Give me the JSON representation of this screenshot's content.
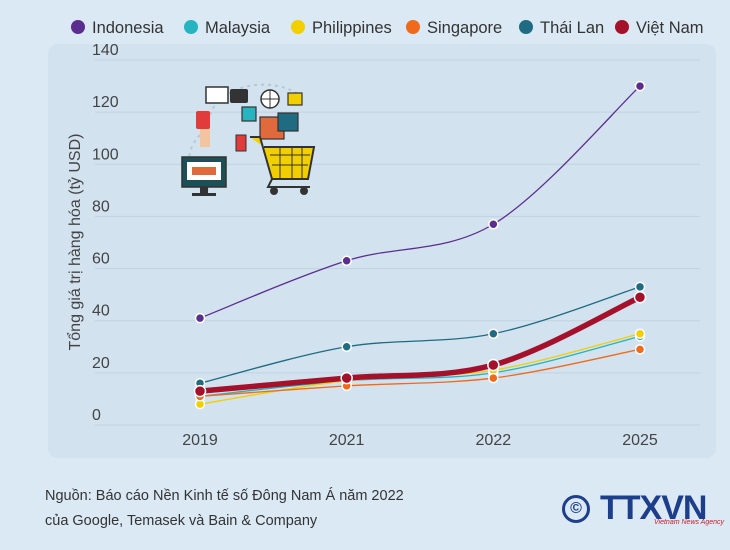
{
  "chart_data": {
    "type": "line",
    "x": [
      "2019",
      "2021",
      "2022",
      "2025"
    ],
    "ylabel": "Tổng giá trị hàng hóa (tỷ USD)",
    "ylim": [
      0,
      140
    ],
    "yticks": [
      0,
      20,
      40,
      60,
      80,
      100,
      120,
      140
    ],
    "grid": true,
    "legend_position": "top",
    "series": [
      {
        "name": "Indonesia",
        "color": "#5b2d8e",
        "values": [
          41,
          63,
          77,
          130
        ]
      },
      {
        "name": "Malaysia",
        "color": "#25b4c0",
        "values": [
          11,
          17,
          20,
          34
        ]
      },
      {
        "name": "Philippines",
        "color": "#f2cf00",
        "values": [
          8,
          17,
          21,
          35
        ]
      },
      {
        "name": "Singapore",
        "color": "#ef6a1a",
        "values": [
          11,
          15,
          18,
          29
        ]
      },
      {
        "name": "Thái Lan",
        "color": "#1f6b82",
        "values": [
          16,
          30,
          35,
          53
        ]
      },
      {
        "name": "Việt Nam",
        "color": "#a5102a",
        "values": [
          13,
          18,
          23,
          49
        ]
      }
    ]
  },
  "source": {
    "line1": "Nguồn: Báo cáo Nền Kinh tế số Đông Nam Á năm 2022",
    "line2": "của Google, Temasek và Bain & Company"
  },
  "logo": {
    "copyright": "©",
    "brand": "TTXVN",
    "agency": "Vietnam News Agency"
  },
  "illustration": {
    "icon": "ecommerce-shopping-cart-icon"
  }
}
